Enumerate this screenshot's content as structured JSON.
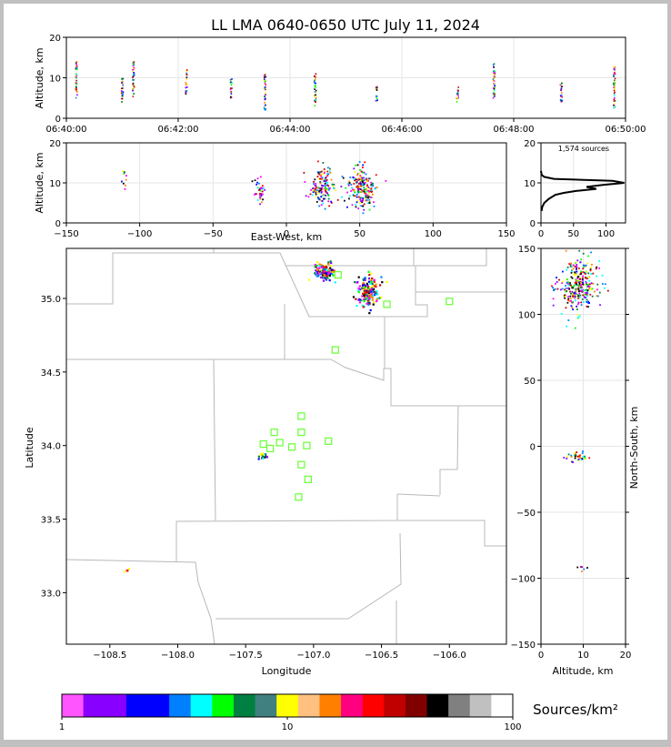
{
  "title": "LL LMA 0640-0650 UTC July 11, 2024",
  "chart_data": [
    {
      "panel": "altitude-vs-time",
      "type": "scatter",
      "ylabel": "Altitude, km",
      "xlabel": "",
      "xticks": [
        "06:40:00",
        "06:42:00",
        "06:44:00",
        "06:46:00",
        "06:48:00",
        "06:50:00"
      ],
      "xlim_minutes": [
        0,
        10
      ],
      "ylim": [
        0,
        20
      ],
      "yticks": [
        0,
        10,
        20
      ],
      "grid": true,
      "columns": [
        {
          "t": 0.18,
          "zmin": 5,
          "zmax": 14
        },
        {
          "t": 1.0,
          "zmin": 4,
          "zmax": 11
        },
        {
          "t": 1.2,
          "zmin": 5,
          "zmax": 14
        },
        {
          "t": 2.15,
          "zmin": 6,
          "zmax": 12
        },
        {
          "t": 2.95,
          "zmin": 5,
          "zmax": 10
        },
        {
          "t": 3.55,
          "zmin": 2,
          "zmax": 11
        },
        {
          "t": 4.45,
          "zmin": 3,
          "zmax": 11
        },
        {
          "t": 5.55,
          "zmin": 4,
          "zmax": 8
        },
        {
          "t": 7.0,
          "zmin": 4,
          "zmax": 8
        },
        {
          "t": 7.65,
          "zmin": 5,
          "zmax": 14
        },
        {
          "t": 8.85,
          "zmin": 4,
          "zmax": 9
        },
        {
          "t": 9.8,
          "zmin": 2,
          "zmax": 13
        }
      ]
    },
    {
      "panel": "altitude-vs-east-west",
      "type": "scatter",
      "xlabel": "East-West, km",
      "ylabel": "Altitude, km",
      "xlim": [
        -150,
        150
      ],
      "xticks": [
        -150,
        -100,
        -50,
        0,
        50,
        100,
        150
      ],
      "ylim": [
        0,
        20
      ],
      "yticks": [
        0,
        10,
        20
      ],
      "grid": true,
      "clusters": [
        {
          "x": -110,
          "z": 10,
          "sx": 1,
          "sz": 2,
          "n": 10
        },
        {
          "x": -18,
          "z": 8,
          "sx": 2,
          "sz": 1.5,
          "n": 40
        },
        {
          "x": 24,
          "z": 9,
          "sx": 4,
          "sz": 2.5,
          "n": 140
        },
        {
          "x": 52,
          "z": 8.5,
          "sx": 5,
          "sz": 2.5,
          "n": 200
        }
      ]
    },
    {
      "panel": "altitude-histogram",
      "type": "line",
      "annotation": "1,574 sources",
      "xlim": [
        0,
        130
      ],
      "xticks": [
        0,
        50,
        100
      ],
      "ylim": [
        0,
        20
      ],
      "yticks": [
        0,
        10,
        20
      ],
      "profile": [
        {
          "z": 3,
          "n": 1
        },
        {
          "z": 4,
          "n": 2
        },
        {
          "z": 5,
          "n": 5
        },
        {
          "z": 6,
          "n": 12
        },
        {
          "z": 7,
          "n": 22
        },
        {
          "z": 7.5,
          "n": 35
        },
        {
          "z": 8,
          "n": 55
        },
        {
          "z": 8.5,
          "n": 85
        },
        {
          "z": 9,
          "n": 70
        },
        {
          "z": 9.5,
          "n": 95
        },
        {
          "z": 10,
          "n": 128
        },
        {
          "z": 10.5,
          "n": 110
        },
        {
          "z": 11,
          "n": 20
        },
        {
          "z": 11.5,
          "n": 5
        },
        {
          "z": 12,
          "n": 1
        },
        {
          "z": 13,
          "n": 0
        }
      ]
    },
    {
      "panel": "plan-view",
      "type": "scatter",
      "xlabel": "Longitude",
      "ylabel": "Latitude",
      "xlim": [
        -108.82,
        -105.58
      ],
      "ylim": [
        32.65,
        35.34
      ],
      "xticks": [
        -108.5,
        -108.0,
        -107.5,
        -107.0,
        -106.5,
        -106.0
      ],
      "yticks": [
        33.0,
        33.5,
        34.0,
        34.5,
        35.0
      ],
      "xtick_labels": [
        "−108.5",
        "−108.0",
        "−107.5",
        "−107.0",
        "−106.5",
        "−106.0"
      ],
      "ytick_labels": [
        "33.0",
        "33.5",
        "34.0",
        "34.5",
        "35.0"
      ],
      "stations": [
        [
          -106.82,
          35.16
        ],
        [
          -106.46,
          34.96
        ],
        [
          -106.0,
          34.98
        ],
        [
          -106.84,
          34.65
        ],
        [
          -107.09,
          34.2
        ],
        [
          -107.29,
          34.09
        ],
        [
          -107.09,
          34.09
        ],
        [
          -107.37,
          34.01
        ],
        [
          -107.25,
          34.02
        ],
        [
          -106.89,
          34.03
        ],
        [
          -107.05,
          34.0
        ],
        [
          -107.32,
          33.98
        ],
        [
          -107.16,
          33.99
        ],
        [
          -107.09,
          33.87
        ],
        [
          -107.04,
          33.77
        ],
        [
          -107.11,
          33.65
        ]
      ],
      "clusters": [
        {
          "lon": -106.92,
          "lat": 35.18,
          "sx": 0.035,
          "sy": 0.03,
          "n": 120
        },
        {
          "lon": -106.6,
          "lat": 35.05,
          "sx": 0.04,
          "sy": 0.05,
          "n": 160
        },
        {
          "lon": -107.37,
          "lat": 33.93,
          "sx": 0.015,
          "sy": 0.01,
          "n": 25
        },
        {
          "lon": -108.37,
          "lat": 33.15,
          "sx": 0.008,
          "sy": 0.008,
          "n": 5
        }
      ]
    },
    {
      "panel": "north-south-vs-altitude",
      "type": "scatter",
      "xlabel": "Altitude, km",
      "ylabel": "North-South, km",
      "xlim": [
        0,
        20
      ],
      "xticks": [
        0,
        10,
        20
      ],
      "ylim": [
        -150,
        150
      ],
      "yticks": [
        -150,
        -100,
        -50,
        0,
        50,
        100,
        150
      ],
      "ytick_labels": [
        "−150",
        "−100",
        "−50",
        "0",
        "50",
        "100",
        "150"
      ],
      "clusters": [
        {
          "z": 9,
          "y": 121,
          "sx": 2.5,
          "sy": 10,
          "n": 300
        },
        {
          "z": 8.3,
          "y": -8,
          "sx": 1.2,
          "sy": 2,
          "n": 40
        },
        {
          "z": 10,
          "y": -93,
          "sx": 0.8,
          "sy": 1,
          "n": 6
        }
      ]
    }
  ],
  "colorbar": {
    "label": "Sources/km²",
    "tick_labels": [
      "1",
      "10",
      "100"
    ],
    "colors": [
      "#ff55ff",
      "#8800ff",
      "#8800ff",
      "#0000ff",
      "#0000ff",
      "#0080ff",
      "#00ffff",
      "#00ff00",
      "#008040",
      "#408080",
      "#ffff00",
      "#ffc080",
      "#ff8000",
      "#ff0080",
      "#ff0000",
      "#c00000",
      "#800000",
      "#000000",
      "#808080",
      "#c0c0c0",
      "#ffffff"
    ]
  },
  "scatter_colors": [
    "#ff00ff",
    "#8000ff",
    "#0000ff",
    "#0080ff",
    "#00ffff",
    "#00ff00",
    "#008040",
    "#ffff00",
    "#ff8000",
    "#ff0000",
    "#c00000",
    "#000000"
  ],
  "station_color": "#66ff33"
}
